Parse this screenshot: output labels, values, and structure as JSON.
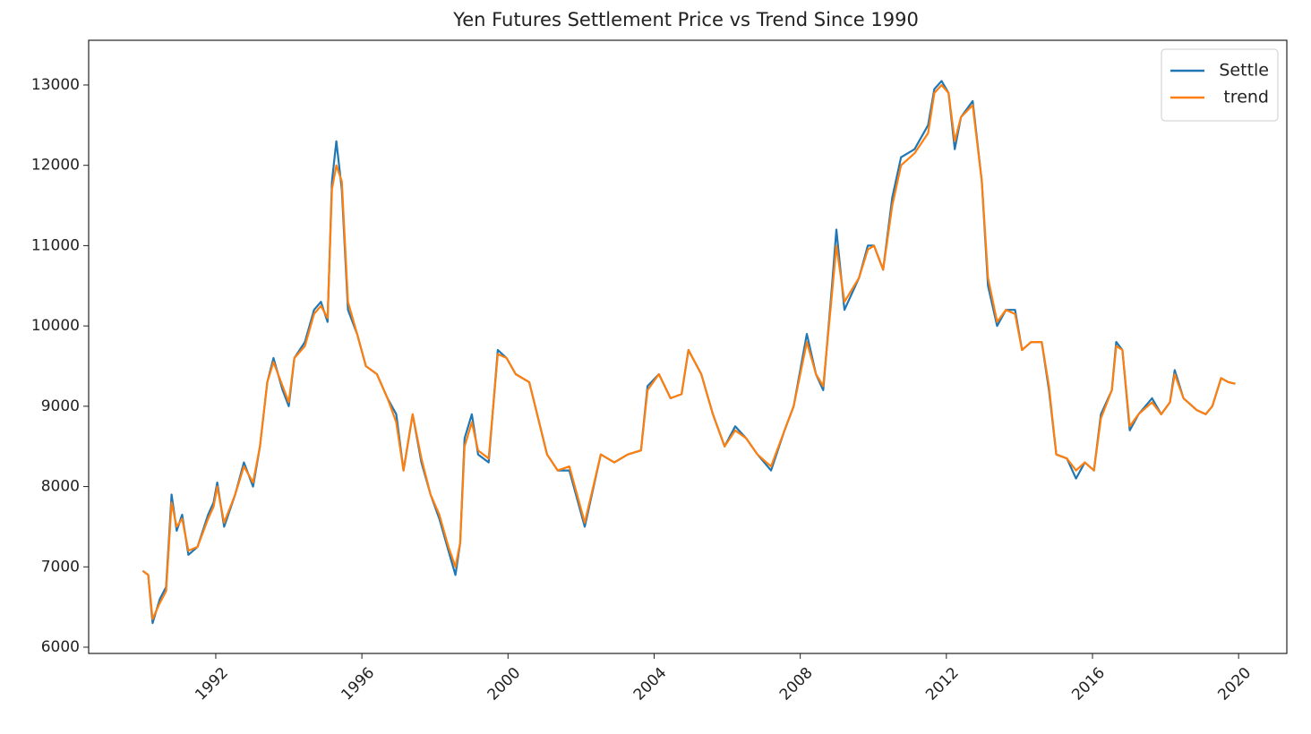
{
  "chart_data": {
    "type": "line",
    "title": "Yen Futures Settlement Price vs Trend Since 1990",
    "x": [
      1990.0,
      1990.15,
      1990.27,
      1990.47,
      1990.64,
      1990.79,
      1990.93,
      1991.08,
      1991.25,
      1991.5,
      1991.79,
      1991.94,
      1992.04,
      1992.23,
      1992.53,
      1992.77,
      1993.02,
      1993.21,
      1993.41,
      1993.58,
      1993.83,
      1994.0,
      1994.15,
      1994.44,
      1994.69,
      1994.88,
      1995.06,
      1995.18,
      1995.3,
      1995.45,
      1995.62,
      1995.87,
      1996.11,
      1996.41,
      1996.7,
      1996.94,
      1997.14,
      1997.39,
      1997.63,
      1997.88,
      1998.12,
      1998.37,
      1998.56,
      1998.69,
      1998.81,
      1999.01,
      1999.18,
      1999.47,
      1999.72,
      1999.96,
      2000.21,
      2000.58,
      2001.07,
      2001.36,
      2001.68,
      2002.1,
      2002.54,
      2002.91,
      2003.28,
      2003.64,
      2003.82,
      2004.13,
      2004.45,
      2004.75,
      2004.94,
      2005.29,
      2005.61,
      2005.93,
      2006.22,
      2006.52,
      2006.83,
      2007.2,
      2007.57,
      2007.82,
      2008.18,
      2008.43,
      2008.63,
      2008.87,
      2008.99,
      2009.21,
      2009.61,
      2009.85,
      2010.02,
      2010.27,
      2010.52,
      2010.76,
      2011.13,
      2011.5,
      2011.67,
      2011.87,
      2012.06,
      2012.23,
      2012.4,
      2012.72,
      2012.97,
      2013.14,
      2013.39,
      2013.63,
      2013.88,
      2014.07,
      2014.32,
      2014.61,
      2014.81,
      2015.01,
      2015.3,
      2015.55,
      2015.79,
      2016.04,
      2016.23,
      2016.53,
      2016.65,
      2016.82,
      2017.02,
      2017.26,
      2017.63,
      2017.88,
      2018.12,
      2018.25,
      2018.49,
      2018.86,
      2019.1,
      2019.28,
      2019.52,
      2019.72,
      2019.91
    ],
    "series": [
      {
        "name": "Settle",
        "color": "#1f77b4",
        "values": [
          6950,
          6900,
          6300,
          6600,
          6750,
          7900,
          7450,
          7650,
          7150,
          7250,
          7650,
          7800,
          8050,
          7500,
          7900,
          8300,
          8000,
          8500,
          9300,
          9600,
          9200,
          9000,
          9600,
          9800,
          10200,
          10300,
          10050,
          11800,
          12300,
          11700,
          10200,
          9900,
          9500,
          9400,
          9100,
          8900,
          8200,
          8900,
          8300,
          7900,
          7600,
          7200,
          6900,
          7300,
          8600,
          8900,
          8400,
          8300,
          9700,
          9600,
          9400,
          9300,
          8400,
          8200,
          8200,
          7500,
          8400,
          8300,
          8400,
          8450,
          9250,
          9400,
          9100,
          9150,
          9700,
          9400,
          8900,
          8500,
          8750,
          8600,
          8400,
          8200,
          8700,
          9000,
          9900,
          9400,
          9200,
          10500,
          11200,
          10200,
          10600,
          11000,
          11000,
          10700,
          11600,
          12100,
          12200,
          12500,
          12950,
          13050,
          12900,
          12200,
          12600,
          12800,
          11800,
          10500,
          10000,
          10200,
          10200,
          9700,
          9800,
          9800,
          9200,
          8400,
          8350,
          8100,
          8300,
          8200,
          8900,
          9200,
          9800,
          9700,
          8700,
          8900,
          9100,
          8900,
          9050,
          9450,
          9100,
          8950,
          8900,
          9000,
          9350,
          9300,
          9280
        ]
      },
      {
        "name": "trend",
        "color": "#ff7f0e",
        "values": [
          6950,
          6900,
          6350,
          6550,
          6700,
          7800,
          7500,
          7600,
          7200,
          7250,
          7600,
          7750,
          8000,
          7550,
          7900,
          8250,
          8050,
          8500,
          9300,
          9550,
          9250,
          9050,
          9600,
          9750,
          10150,
          10250,
          10100,
          11700,
          12000,
          11800,
          10300,
          9900,
          9500,
          9400,
          9100,
          8800,
          8200,
          8900,
          8350,
          7900,
          7650,
          7250,
          7000,
          7300,
          8500,
          8800,
          8450,
          8350,
          9650,
          9600,
          9400,
          9300,
          8400,
          8200,
          8250,
          7550,
          8400,
          8300,
          8400,
          8450,
          9200,
          9400,
          9100,
          9150,
          9700,
          9400,
          8900,
          8500,
          8700,
          8600,
          8400,
          8250,
          8700,
          9000,
          9800,
          9400,
          9250,
          10400,
          11000,
          10300,
          10600,
          10950,
          11000,
          10700,
          11500,
          12000,
          12150,
          12400,
          12900,
          13000,
          12900,
          12300,
          12600,
          12750,
          11800,
          10600,
          10050,
          10200,
          10150,
          9700,
          9800,
          9800,
          9250,
          8400,
          8350,
          8200,
          8300,
          8200,
          8850,
          9200,
          9750,
          9700,
          8750,
          8900,
          9050,
          8900,
          9050,
          9400,
          9100,
          8950,
          8900,
          9000,
          9350,
          9300,
          9280
        ]
      }
    ],
    "xlim": [
      1988.52,
      2021.32
    ],
    "ylim": [
      5922,
      13557
    ],
    "xticks": [
      1992,
      1996,
      2000,
      2004,
      2008,
      2012,
      2016,
      2020
    ],
    "yticks": [
      6000,
      7000,
      8000,
      9000,
      10000,
      11000,
      12000,
      13000
    ],
    "grid": false,
    "legend": "upper right"
  }
}
